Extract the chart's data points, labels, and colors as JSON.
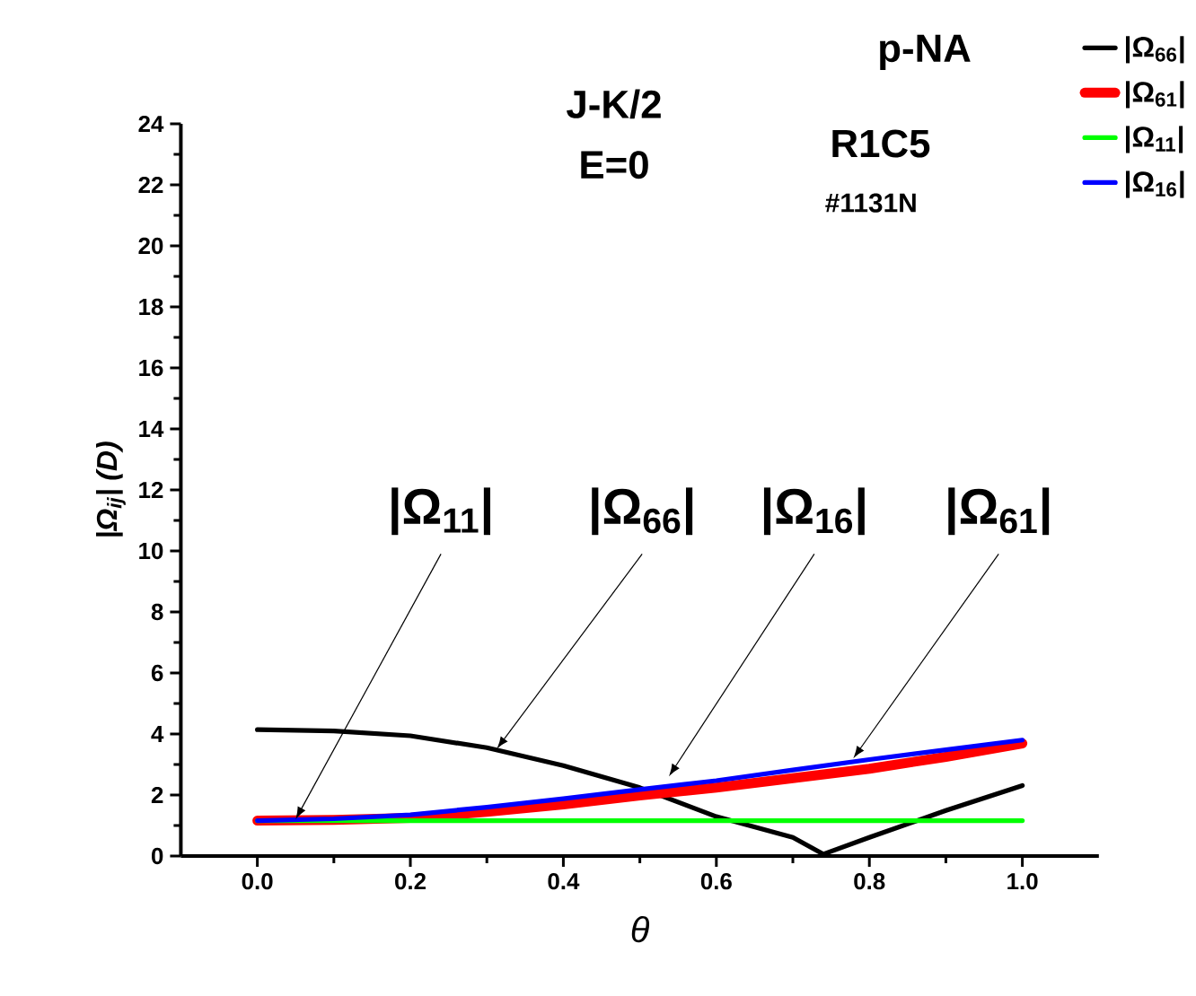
{
  "chart_data": {
    "type": "line",
    "title": "p-NA",
    "xlabel": "θ",
    "ylabel": "|Ω$_{ij}$| (D)",
    "xlim": [
      -0.1,
      1.1
    ],
    "ylim": [
      0,
      24
    ],
    "xticks": [
      {
        "value": 0,
        "label": "0.0"
      },
      {
        "value": 0.2,
        "label": "0.2"
      },
      {
        "value": 0.4,
        "label": "0.4"
      },
      {
        "value": 0.6,
        "label": "0.6"
      },
      {
        "value": 0.8,
        "label": "0.8"
      },
      {
        "value": 1,
        "label": "1.0"
      }
    ],
    "yticks": [
      0,
      2,
      4,
      6,
      8,
      10,
      12,
      14,
      16,
      18,
      20,
      22,
      24
    ],
    "legend": "top right",
    "grid": false,
    "series": [
      {
        "name": "|Ω$_{66}$|",
        "color": "#000000",
        "x": [
          0,
          0.1,
          0.2,
          0.3,
          0.4,
          0.5,
          0.6,
          0.7,
          0.74,
          0.8,
          0.9,
          1.0
        ],
        "values": [
          4.14,
          4.1,
          3.94,
          3.55,
          2.96,
          2.24,
          1.29,
          0.61,
          0.06,
          0.61,
          1.49,
          2.31
        ]
      },
      {
        "name": "|Ω$_{61}$|",
        "color": "#ff0000",
        "x": [
          0,
          0.1,
          0.2,
          0.3,
          0.4,
          0.5,
          0.6,
          0.7,
          0.8,
          0.9,
          1.0
        ],
        "values": [
          1.16,
          1.18,
          1.25,
          1.45,
          1.69,
          1.98,
          2.24,
          2.55,
          2.86,
          3.25,
          3.69
        ]
      },
      {
        "name": "|Ω$_{11}$|",
        "color": "#00ff00",
        "x": [
          0,
          1.0
        ],
        "values": [
          1.16,
          1.16
        ]
      },
      {
        "name": "|Ω$_{16}$|",
        "color": "#0000ff",
        "x": [
          0,
          0.1,
          0.2,
          0.3,
          0.4,
          0.5,
          0.6,
          0.7,
          0.8,
          0.9,
          1.0
        ],
        "values": [
          1.16,
          1.22,
          1.35,
          1.6,
          1.88,
          2.18,
          2.47,
          2.82,
          3.16,
          3.48,
          3.8
        ]
      }
    ],
    "annotations": [
      "J-K/2",
      "E=0",
      "R1C5",
      "#1131N",
      {
        "text": "|Ω$_{11}$|",
        "x": 0.05,
        "y": 1.2
      },
      {
        "text": "|Ω$_{66}$|",
        "x": 0.313,
        "y": 3.51
      },
      {
        "text": "|Ω$_{16}$|",
        "x": 0.538,
        "y": 2.61
      },
      {
        "text": "|Ω$_{61}$|",
        "x": 0.779,
        "y": 3.2
      }
    ]
  }
}
